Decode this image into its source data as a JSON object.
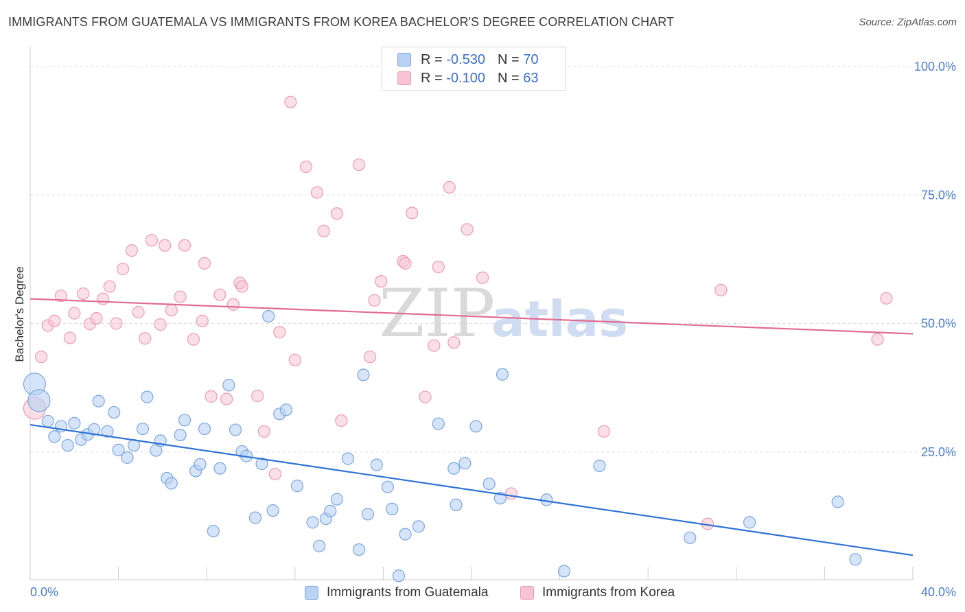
{
  "header": {
    "title": "IMMIGRANTS FROM GUATEMALA VS IMMIGRANTS FROM KOREA BACHELOR'S DEGREE CORRELATION CHART",
    "source": "Source: ZipAtlas.com"
  },
  "watermark": {
    "zip": "ZIP",
    "atlas": "atlas"
  },
  "legend": {
    "rows": [
      {
        "r_label": "R =",
        "r_value": "-0.530",
        "n_label": "N =",
        "n_value": "70"
      },
      {
        "r_label": "R =",
        "r_value": "-0.100",
        "n_label": "N =",
        "n_value": "63"
      }
    ]
  },
  "bottom_legend": {
    "guatemala": "Immigrants from Guatemala",
    "korea": "Immigrants from Korea"
  },
  "colors": {
    "guatemala_fill": "#b9d2f3",
    "guatemala_stroke": "#7ba5df",
    "guatemala_line": "#2f72d6",
    "korea_fill": "#f8c4d3",
    "korea_stroke": "#ee9ab4",
    "korea_line": "#e06b92",
    "tick_text": "#4a7bd0"
  },
  "chart_data": {
    "type": "scatter",
    "title": "IMMIGRANTS FROM GUATEMALA VS IMMIGRANTS FROM KOREA BACHELOR'S DEGREE CORRELATION CHART",
    "xlabel": "",
    "ylabel": "Bachelor's Degree",
    "xlim": [
      0,
      40
    ],
    "ylim": [
      0,
      102
    ],
    "x_tick_labels": [
      "0.0%",
      "40.0%"
    ],
    "y_ticks": [
      25,
      50,
      75,
      100
    ],
    "y_tick_labels": [
      "25.0%",
      "50.0%",
      "75.0%",
      "100.0%"
    ],
    "grid": "horizontal dashed",
    "legend_position": "top-center",
    "series": [
      {
        "name": "Immigrants from Guatemala",
        "r": -0.53,
        "n": 70,
        "trend": {
          "x": [
            0,
            40
          ],
          "y": [
            30.3,
            4.9
          ]
        },
        "points": [
          {
            "x": 0.2,
            "y": 38.2,
            "big": true
          },
          {
            "x": 0.4,
            "y": 35.0,
            "big": true
          },
          {
            "x": 0.8,
            "y": 31.0
          },
          {
            "x": 1.1,
            "y": 28.0
          },
          {
            "x": 1.4,
            "y": 30.0
          },
          {
            "x": 1.7,
            "y": 26.3
          },
          {
            "x": 2.0,
            "y": 30.6
          },
          {
            "x": 2.3,
            "y": 27.4
          },
          {
            "x": 2.6,
            "y": 28.4
          },
          {
            "x": 2.9,
            "y": 29.4
          },
          {
            "x": 3.1,
            "y": 34.9
          },
          {
            "x": 3.5,
            "y": 29.0
          },
          {
            "x": 3.8,
            "y": 32.7
          },
          {
            "x": 4.0,
            "y": 25.4
          },
          {
            "x": 4.4,
            "y": 23.9
          },
          {
            "x": 4.7,
            "y": 26.3
          },
          {
            "x": 5.1,
            "y": 29.5
          },
          {
            "x": 5.3,
            "y": 35.7
          },
          {
            "x": 5.7,
            "y": 25.3
          },
          {
            "x": 5.9,
            "y": 27.2
          },
          {
            "x": 6.2,
            "y": 19.9
          },
          {
            "x": 6.4,
            "y": 18.9
          },
          {
            "x": 6.8,
            "y": 28.3
          },
          {
            "x": 7.0,
            "y": 31.2
          },
          {
            "x": 7.5,
            "y": 21.3
          },
          {
            "x": 7.7,
            "y": 22.6
          },
          {
            "x": 7.9,
            "y": 29.5
          },
          {
            "x": 8.3,
            "y": 9.6
          },
          {
            "x": 8.6,
            "y": 21.8
          },
          {
            "x": 9.0,
            "y": 38.0
          },
          {
            "x": 9.3,
            "y": 29.3
          },
          {
            "x": 9.6,
            "y": 25.1
          },
          {
            "x": 9.8,
            "y": 24.2
          },
          {
            "x": 10.2,
            "y": 12.2
          },
          {
            "x": 10.5,
            "y": 22.7
          },
          {
            "x": 10.8,
            "y": 51.4
          },
          {
            "x": 11.0,
            "y": 13.6
          },
          {
            "x": 11.3,
            "y": 32.4
          },
          {
            "x": 11.6,
            "y": 33.2
          },
          {
            "x": 12.1,
            "y": 18.4
          },
          {
            "x": 12.8,
            "y": 11.3
          },
          {
            "x": 13.1,
            "y": 6.7
          },
          {
            "x": 13.4,
            "y": 12.0
          },
          {
            "x": 13.6,
            "y": 13.5
          },
          {
            "x": 13.9,
            "y": 15.8
          },
          {
            "x": 14.4,
            "y": 23.7
          },
          {
            "x": 14.9,
            "y": 6.0
          },
          {
            "x": 15.1,
            "y": 40.0
          },
          {
            "x": 15.3,
            "y": 12.9
          },
          {
            "x": 15.7,
            "y": 22.5
          },
          {
            "x": 16.2,
            "y": 18.2
          },
          {
            "x": 16.4,
            "y": 13.9
          },
          {
            "x": 16.7,
            "y": 0.9
          },
          {
            "x": 17.0,
            "y": 9.0
          },
          {
            "x": 17.6,
            "y": 10.5
          },
          {
            "x": 18.5,
            "y": 30.5
          },
          {
            "x": 19.2,
            "y": 21.8
          },
          {
            "x": 19.3,
            "y": 14.7
          },
          {
            "x": 19.7,
            "y": 22.8
          },
          {
            "x": 20.2,
            "y": 30.0
          },
          {
            "x": 20.8,
            "y": 18.8
          },
          {
            "x": 21.3,
            "y": 16.0
          },
          {
            "x": 21.4,
            "y": 40.1
          },
          {
            "x": 23.4,
            "y": 15.7
          },
          {
            "x": 24.2,
            "y": 1.8
          },
          {
            "x": 25.8,
            "y": 22.3
          },
          {
            "x": 29.9,
            "y": 8.3
          },
          {
            "x": 32.6,
            "y": 11.3
          },
          {
            "x": 36.6,
            "y": 15.3
          },
          {
            "x": 37.4,
            "y": 4.1
          }
        ]
      },
      {
        "name": "Immigrants from Korea",
        "r": -0.1,
        "n": 63,
        "trend": {
          "x": [
            0,
            40
          ],
          "y": [
            54.8,
            48.0
          ]
        },
        "points": [
          {
            "x": 0.2,
            "y": 33.5,
            "big": true
          },
          {
            "x": 0.5,
            "y": 43.5
          },
          {
            "x": 0.8,
            "y": 49.6
          },
          {
            "x": 1.1,
            "y": 50.5
          },
          {
            "x": 1.4,
            "y": 55.4
          },
          {
            "x": 1.8,
            "y": 47.2
          },
          {
            "x": 2.0,
            "y": 52.0
          },
          {
            "x": 2.4,
            "y": 55.8
          },
          {
            "x": 2.7,
            "y": 49.9
          },
          {
            "x": 3.0,
            "y": 51.0
          },
          {
            "x": 3.3,
            "y": 54.8
          },
          {
            "x": 3.6,
            "y": 57.2
          },
          {
            "x": 3.9,
            "y": 50.0
          },
          {
            "x": 4.2,
            "y": 60.6
          },
          {
            "x": 4.6,
            "y": 64.2
          },
          {
            "x": 4.9,
            "y": 52.2
          },
          {
            "x": 5.2,
            "y": 47.1
          },
          {
            "x": 5.5,
            "y": 66.2
          },
          {
            "x": 5.9,
            "y": 49.8
          },
          {
            "x": 6.1,
            "y": 65.2
          },
          {
            "x": 6.4,
            "y": 52.6
          },
          {
            "x": 6.8,
            "y": 55.2
          },
          {
            "x": 7.0,
            "y": 65.2
          },
          {
            "x": 7.4,
            "y": 46.9
          },
          {
            "x": 7.8,
            "y": 50.5
          },
          {
            "x": 7.9,
            "y": 61.7
          },
          {
            "x": 8.2,
            "y": 35.8
          },
          {
            "x": 8.6,
            "y": 55.6
          },
          {
            "x": 8.9,
            "y": 35.3
          },
          {
            "x": 9.2,
            "y": 53.7
          },
          {
            "x": 9.5,
            "y": 57.9
          },
          {
            "x": 9.6,
            "y": 57.2
          },
          {
            "x": 10.3,
            "y": 35.9
          },
          {
            "x": 10.6,
            "y": 29.0
          },
          {
            "x": 11.1,
            "y": 20.7
          },
          {
            "x": 11.3,
            "y": 48.3
          },
          {
            "x": 11.8,
            "y": 93.1
          },
          {
            "x": 12.0,
            "y": 42.9
          },
          {
            "x": 12.5,
            "y": 80.5
          },
          {
            "x": 13.0,
            "y": 75.5
          },
          {
            "x": 13.3,
            "y": 68.0
          },
          {
            "x": 13.9,
            "y": 71.4
          },
          {
            "x": 14.1,
            "y": 31.1
          },
          {
            "x": 14.9,
            "y": 80.9
          },
          {
            "x": 15.4,
            "y": 43.5
          },
          {
            "x": 15.6,
            "y": 54.5
          },
          {
            "x": 15.9,
            "y": 58.2
          },
          {
            "x": 16.9,
            "y": 62.1
          },
          {
            "x": 17.0,
            "y": 61.7
          },
          {
            "x": 17.3,
            "y": 71.5
          },
          {
            "x": 17.9,
            "y": 35.7
          },
          {
            "x": 18.3,
            "y": 45.7
          },
          {
            "x": 18.5,
            "y": 61.0
          },
          {
            "x": 19.0,
            "y": 76.5
          },
          {
            "x": 19.2,
            "y": 46.3
          },
          {
            "x": 19.8,
            "y": 68.3
          },
          {
            "x": 20.5,
            "y": 58.9
          },
          {
            "x": 21.8,
            "y": 16.9
          },
          {
            "x": 26.0,
            "y": 29.0
          },
          {
            "x": 30.7,
            "y": 11.0
          },
          {
            "x": 31.3,
            "y": 56.5
          },
          {
            "x": 38.4,
            "y": 46.9
          },
          {
            "x": 38.8,
            "y": 54.9
          }
        ]
      }
    ]
  }
}
